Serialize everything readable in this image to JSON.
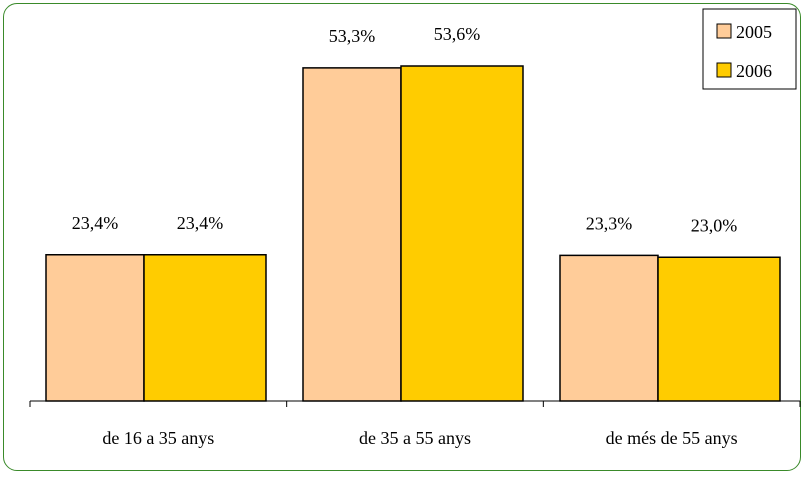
{
  "chart_data": {
    "type": "bar",
    "categories": [
      "de 16 a 35 anys",
      "de 35 a 55 anys",
      "de més de 55 anys"
    ],
    "series": [
      {
        "name": "2005",
        "values": [
          23.4,
          53.3,
          23.3
        ],
        "labels": [
          "23,4%",
          "53,3%",
          "23,3%"
        ],
        "color": "#FFCC99"
      },
      {
        "name": "2006",
        "values": [
          23.4,
          53.6,
          23.0
        ],
        "labels": [
          "23,4%",
          "53,6%",
          "23,0%"
        ],
        "color": "#FFCC00"
      }
    ],
    "title": "",
    "xlabel": "",
    "ylabel": "",
    "ylim": [
      0,
      60
    ],
    "grid": false,
    "legend_position": "top-right",
    "frame_color": "#3A8A2A"
  }
}
